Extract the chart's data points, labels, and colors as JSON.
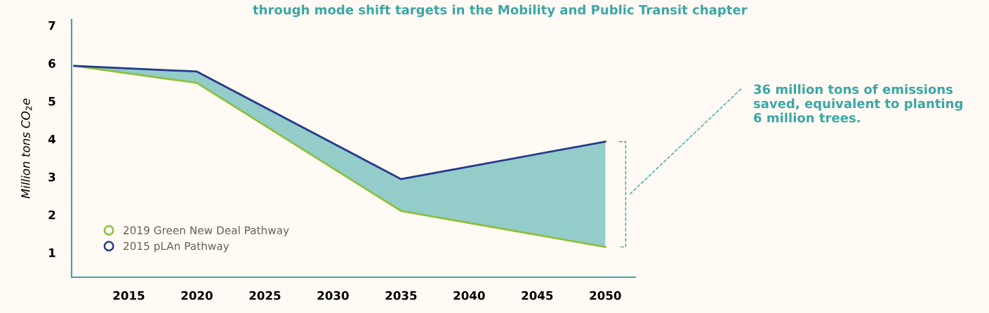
{
  "chart_data": {
    "type": "line",
    "ylabel": "Million tons CO$_{2}$e",
    "x": [
      2011,
      2020,
      2035,
      2050
    ],
    "series": [
      {
        "name": "2019 Green New Deal Pathway",
        "color": "#8dbf3e",
        "values": [
          5.93,
          5.48,
          2.1,
          1.15
        ]
      },
      {
        "name": "2015 pLAn Pathway",
        "color": "#253a8c",
        "values": [
          5.93,
          5.78,
          2.94,
          3.93
        ],
        "lower": [
          5.93,
          5.48,
          2.1,
          1.15
        ],
        "upper": [
          5.93,
          5.78,
          2.94,
          3.93
        ]
      }
    ],
    "xlim": [
      2010.8,
      2052.2
    ],
    "ylim": [
      0.35,
      7.15
    ],
    "xticks": [
      2015,
      2020,
      2025,
      2030,
      2035,
      2040,
      2045,
      2050
    ],
    "yticks": [
      1,
      2,
      3,
      4,
      5,
      6,
      7
    ],
    "grid": false,
    "legend": "bottom left",
    "marker": "none",
    "line_style": "solid",
    "annotations": [
      "36 million tons of emissions\nsaved, equivalent to planting\n6 million trees.",
      "through mode shift targets in the Mobility and Public Transit chapter"
    ]
  }
}
